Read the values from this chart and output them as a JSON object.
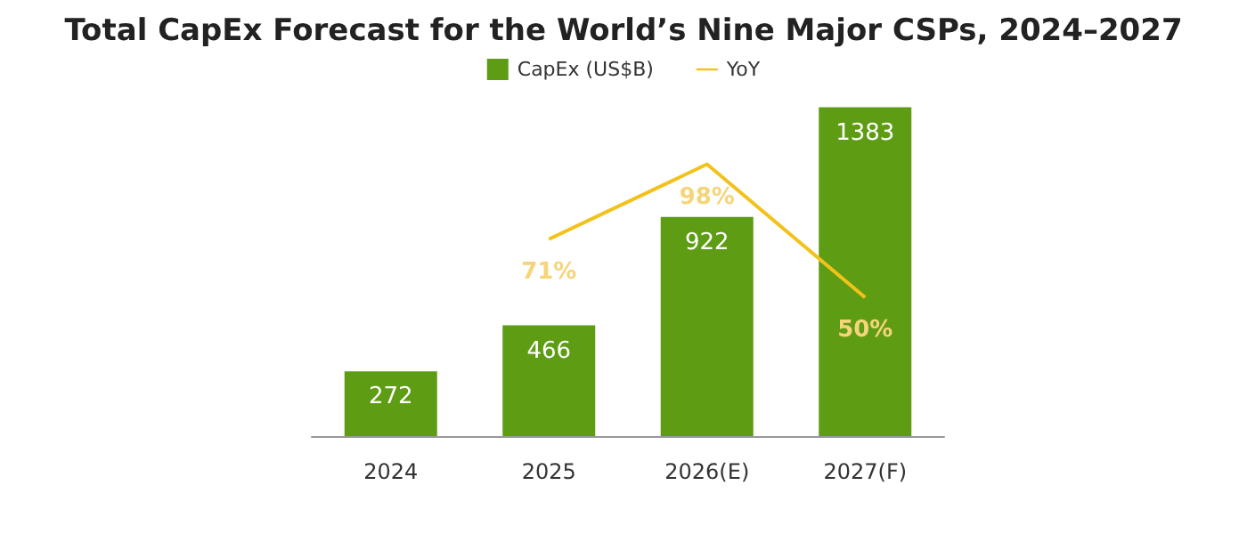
{
  "chart_data": {
    "type": "bar",
    "title": "Total CapEx Forecast for the World’s Nine Major CSPs, 2024–2027",
    "categories": [
      "2024",
      "2025",
      "2026(E)",
      "2027(F)"
    ],
    "series": [
      {
        "name": "CapEx (US$B)",
        "color": "#5e9c14",
        "values": [
          272,
          466,
          922,
          1383
        ]
      },
      {
        "name": "YoY",
        "type": "line",
        "axis": "y2",
        "color": "#f2c21b",
        "values": [
          null,
          71,
          98,
          50
        ],
        "value_labels": [
          null,
          "71%",
          "98%",
          "50%"
        ]
      }
    ],
    "data_labels": true,
    "ylim": [
      0,
      1400
    ],
    "y2lim": [
      0,
      120
    ],
    "tick_labels": "x",
    "grid": false,
    "legend": "top",
    "marker": "none"
  }
}
